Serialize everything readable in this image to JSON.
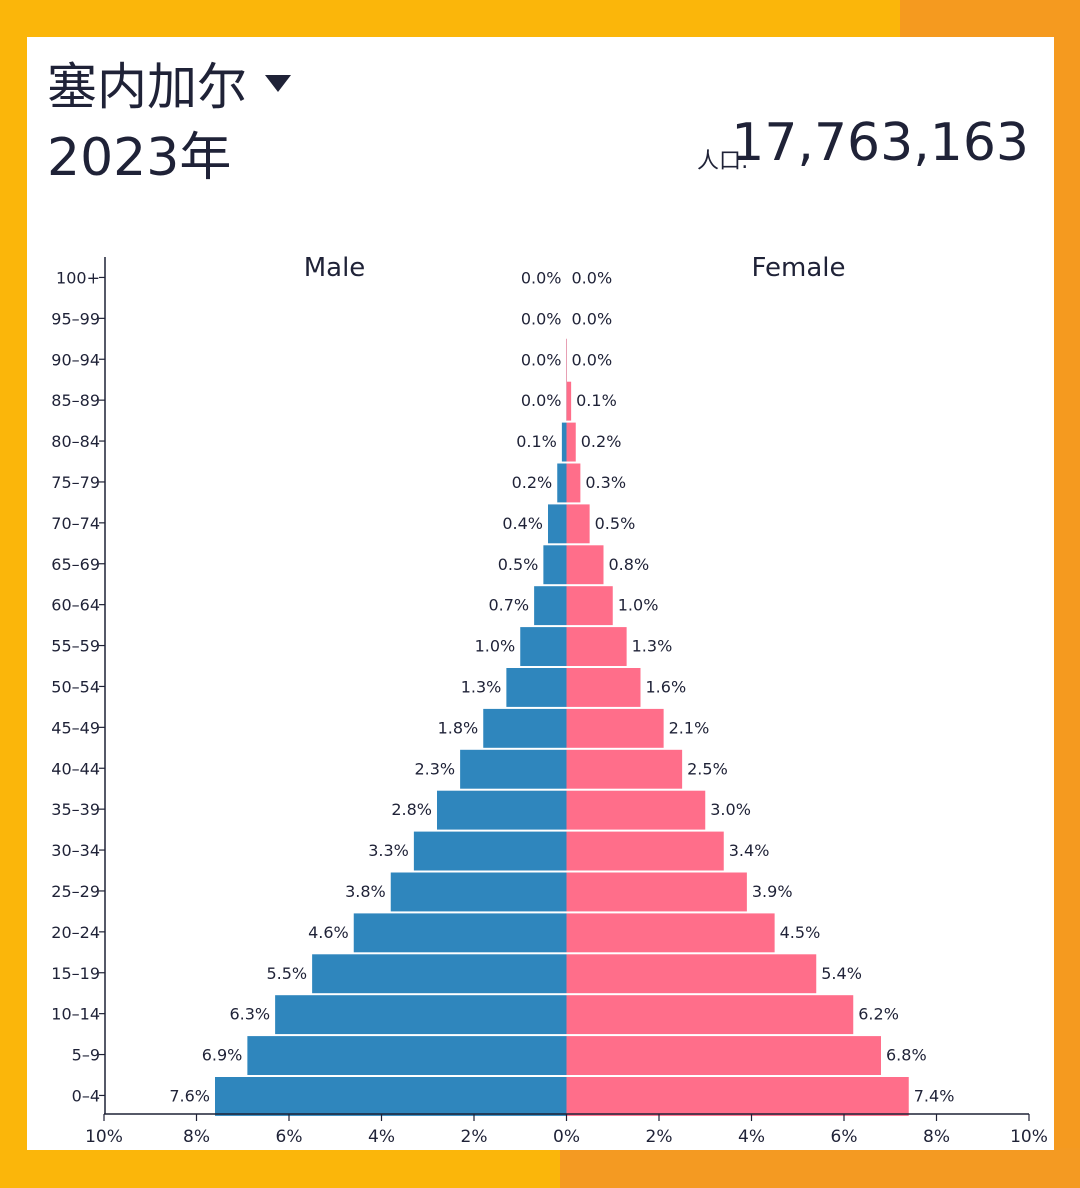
{
  "header": {
    "country": "塞内加尔",
    "year": "2023年",
    "population_label": "人口:",
    "population_value": "17,763,163"
  },
  "colors": {
    "male": "#2f86bd",
    "female": "#ff6e8a",
    "text": "#1f2237"
  },
  "chart_data": {
    "type": "bar",
    "orientation": "horizontal-pyramid",
    "categories": [
      "100+",
      "95–99",
      "90–94",
      "85–89",
      "80–84",
      "75–79",
      "70–74",
      "65–69",
      "60–64",
      "55–59",
      "50–54",
      "45–49",
      "40–44",
      "35–39",
      "30–34",
      "25–29",
      "20–24",
      "15–19",
      "10–14",
      "5–9",
      "0–4"
    ],
    "series": [
      {
        "name": "Male",
        "values": [
          0.0,
          0.0,
          0.0,
          0.0,
          0.1,
          0.2,
          0.4,
          0.5,
          0.7,
          1.0,
          1.3,
          1.8,
          2.3,
          2.8,
          3.3,
          3.8,
          4.6,
          5.5,
          6.3,
          6.9,
          7.6
        ],
        "value_labels": [
          "0.0%",
          "0.0%",
          "0.0%",
          "0.0%",
          "0.1%",
          "0.2%",
          "0.4%",
          "0.5%",
          "0.7%",
          "1.0%",
          "1.3%",
          "1.8%",
          "2.3%",
          "2.8%",
          "3.3%",
          "3.8%",
          "4.6%",
          "5.5%",
          "6.3%",
          "6.9%",
          "7.6%"
        ]
      },
      {
        "name": "Female",
        "values": [
          0.0,
          0.0,
          0.0,
          0.1,
          0.2,
          0.3,
          0.5,
          0.8,
          1.0,
          1.3,
          1.6,
          2.1,
          2.5,
          3.0,
          3.4,
          3.9,
          4.5,
          5.4,
          6.2,
          6.8,
          7.4
        ],
        "value_labels": [
          "0.0%",
          "0.0%",
          "0.0%",
          "0.1%",
          "0.2%",
          "0.3%",
          "0.5%",
          "0.8%",
          "1.0%",
          "1.3%",
          "1.6%",
          "2.1%",
          "2.5%",
          "3.0%",
          "3.4%",
          "3.9%",
          "4.5%",
          "5.4%",
          "6.2%",
          "6.8%",
          "7.4%"
        ]
      }
    ],
    "xlim": [
      -10,
      10
    ],
    "xticks": [
      -10,
      -8,
      -6,
      -4,
      -2,
      0,
      2,
      4,
      6,
      8,
      10
    ],
    "xtick_labels": [
      "10%",
      "8%",
      "6%",
      "4%",
      "2%",
      "0%",
      "2%",
      "4%",
      "6%",
      "8%",
      "10%"
    ],
    "grid": false
  }
}
